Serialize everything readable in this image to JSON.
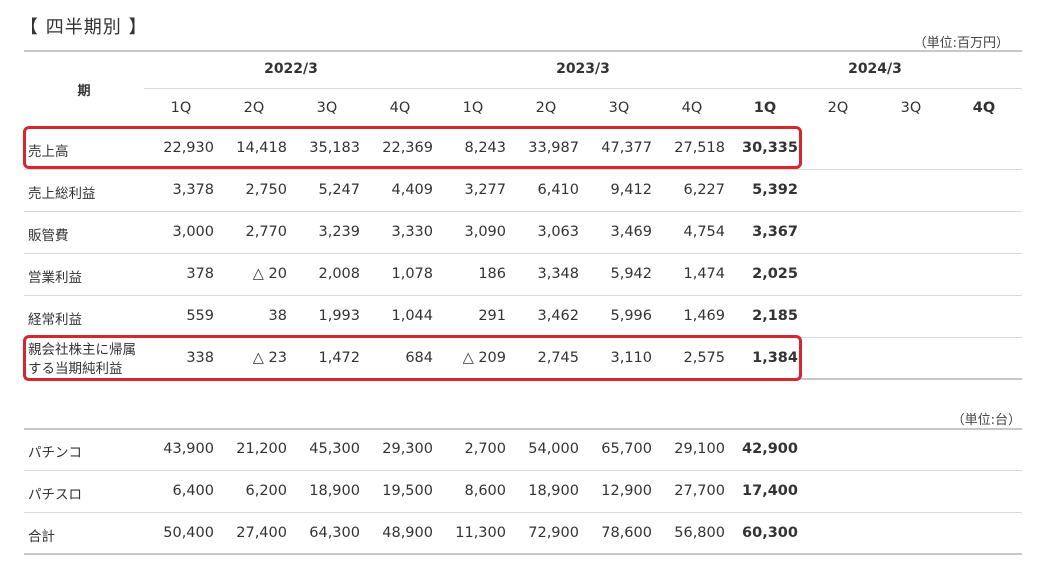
{
  "title": "【 四半期別 】",
  "unit_million": "（単位:百万円）",
  "unit_units": "（単位:台）",
  "header": {
    "period_label": "期",
    "years": [
      "2022/3",
      "2023/3",
      "2024/3"
    ],
    "quarters": [
      "1Q",
      "2Q",
      "3Q",
      "4Q",
      "1Q",
      "2Q",
      "3Q",
      "4Q",
      "1Q",
      "2Q",
      "3Q",
      "4Q"
    ]
  },
  "financials": [
    {
      "label": "売上高",
      "values": [
        "22,930",
        "14,418",
        "35,183",
        "22,369",
        "8,243",
        "33,987",
        "47,377",
        "27,518",
        "30,335"
      ],
      "highlighted": true
    },
    {
      "label": "売上総利益",
      "values": [
        "3,378",
        "2,750",
        "5,247",
        "4,409",
        "3,277",
        "6,410",
        "9,412",
        "6,227",
        "5,392"
      ],
      "highlighted": false
    },
    {
      "label": "販管費",
      "values": [
        "3,000",
        "2,770",
        "3,239",
        "3,330",
        "3,090",
        "3,063",
        "3,469",
        "4,754",
        "3,367"
      ],
      "highlighted": false
    },
    {
      "label": "営業利益",
      "values": [
        "378",
        "△ 20",
        "2,008",
        "1,078",
        "186",
        "3,348",
        "5,942",
        "1,474",
        "2,025"
      ],
      "highlighted": false
    },
    {
      "label": "経常利益",
      "values": [
        "559",
        "38",
        "1,993",
        "1,044",
        "291",
        "3,462",
        "5,996",
        "1,469",
        "2,185"
      ],
      "highlighted": false
    },
    {
      "label_line1": "親会社株主に帰属",
      "label_line2": "する当期純利益",
      "values": [
        "338",
        "△ 23",
        "1,472",
        "684",
        "△ 209",
        "2,745",
        "3,110",
        "2,575",
        "1,384"
      ],
      "highlighted": true
    }
  ],
  "units": [
    {
      "label": "パチンコ",
      "values": [
        "43,900",
        "21,200",
        "45,300",
        "29,300",
        "2,700",
        "54,000",
        "65,700",
        "29,100",
        "42,900"
      ]
    },
    {
      "label": "パチスロ",
      "values": [
        "6,400",
        "6,200",
        "18,900",
        "19,500",
        "8,600",
        "18,900",
        "12,900",
        "27,700",
        "17,400"
      ]
    },
    {
      "label": "合計",
      "values": [
        "50,400",
        "27,400",
        "64,300",
        "48,900",
        "11,300",
        "72,900",
        "78,600",
        "56,800",
        "60,300"
      ]
    }
  ],
  "colors": {
    "highlight_border": "#d6262e",
    "rule": "#d9d9d9"
  }
}
